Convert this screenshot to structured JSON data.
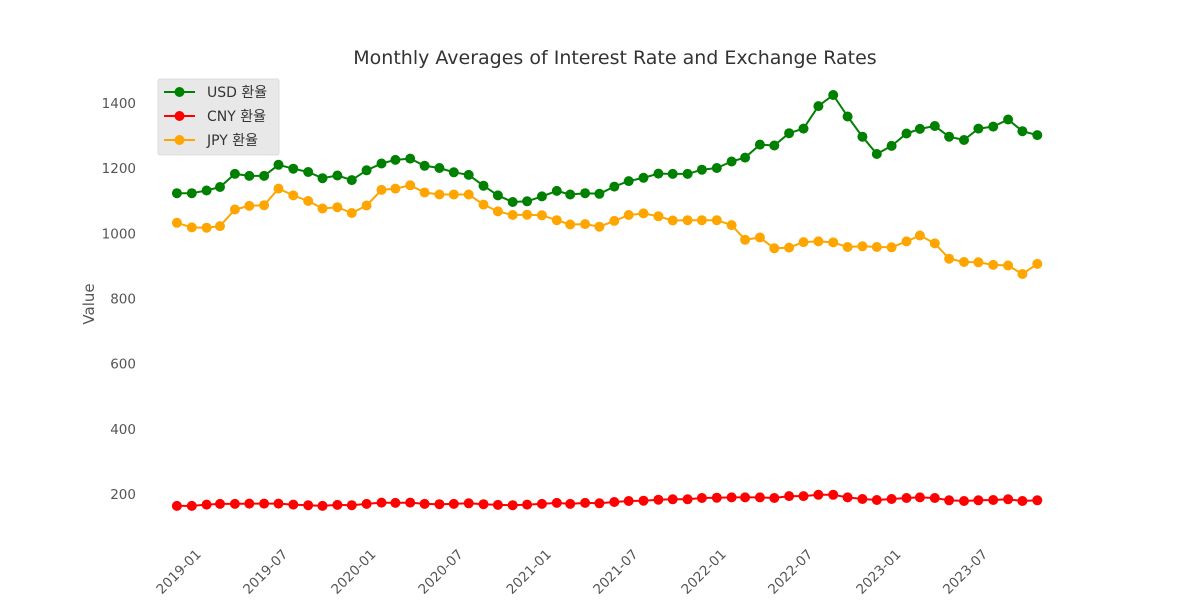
{
  "chart_data": {
    "type": "line",
    "title": "Monthly Averages of Interest Rate and Exchange Rates",
    "xlabel": "",
    "ylabel": "Value",
    "ylim": [
      90,
      1470
    ],
    "yticks": [
      200,
      400,
      600,
      800,
      1000,
      1200,
      1400
    ],
    "xlim": [
      "2018-11-27",
      "2023-12-08"
    ],
    "xticks": [
      "2019-01",
      "2019-07",
      "2020-01",
      "2020-07",
      "2021-01",
      "2021-07",
      "2022-01",
      "2022-07",
      "2023-01",
      "2023-07"
    ],
    "grid": false,
    "legend_position": "top-left",
    "x": [
      "2018-12",
      "2019-01",
      "2019-02",
      "2019-03",
      "2019-04",
      "2019-05",
      "2019-06",
      "2019-07",
      "2019-08",
      "2019-09",
      "2019-10",
      "2019-11",
      "2019-12",
      "2020-01",
      "2020-02",
      "2020-03",
      "2020-04",
      "2020-05",
      "2020-06",
      "2020-07",
      "2020-08",
      "2020-09",
      "2020-10",
      "2020-11",
      "2020-12",
      "2021-01",
      "2021-02",
      "2021-03",
      "2021-04",
      "2021-05",
      "2021-06",
      "2021-07",
      "2021-08",
      "2021-09",
      "2021-10",
      "2021-11",
      "2021-12",
      "2022-01",
      "2022-02",
      "2022-03",
      "2022-04",
      "2022-05",
      "2022-06",
      "2022-07",
      "2022-08",
      "2022-09",
      "2022-10",
      "2022-11",
      "2022-12",
      "2023-01",
      "2023-02",
      "2023-03",
      "2023-04",
      "2023-05",
      "2023-06",
      "2023-07",
      "2023-08",
      "2023-09",
      "2023-10",
      "2023-11"
    ],
    "series": [
      {
        "name": "USD 환율",
        "color": "#008000",
        "values": [
          1123,
          1123,
          1131,
          1142,
          1182,
          1176,
          1176,
          1210,
          1198,
          1188,
          1169,
          1177,
          1163,
          1193,
          1214,
          1225,
          1229,
          1207,
          1200,
          1187,
          1179,
          1146,
          1116,
          1096,
          1098,
          1113,
          1130,
          1119,
          1123,
          1121,
          1143,
          1160,
          1170,
          1183,
          1182,
          1182,
          1195,
          1200,
          1220,
          1232,
          1272,
          1269,
          1307,
          1321,
          1390,
          1424,
          1358,
          1296,
          1243,
          1268,
          1306,
          1320,
          1329,
          1296,
          1286,
          1321,
          1327,
          1349,
          1313,
          1301
        ]
      },
      {
        "name": "CNY 환율",
        "color": "#ff0000",
        "values": [
          164,
          164,
          168,
          170,
          170,
          171,
          171,
          171,
          168,
          166,
          164,
          167,
          166,
          170,
          174,
          173,
          174,
          170,
          169,
          170,
          172,
          169,
          167,
          166,
          168,
          170,
          173,
          170,
          173,
          172,
          176,
          179,
          180,
          183,
          184,
          184,
          188,
          189,
          190,
          190,
          190,
          188,
          194,
          194,
          198,
          198,
          190,
          185,
          182,
          185,
          188,
          190,
          188,
          181,
          179,
          181,
          182,
          184,
          179,
          181
        ]
      },
      {
        "name": "JPY 환율",
        "color": "#ffa500",
        "values": [
          1032,
          1018,
          1017,
          1022,
          1073,
          1084,
          1086,
          1137,
          1116,
          1099,
          1076,
          1080,
          1062,
          1085,
          1133,
          1137,
          1147,
          1125,
          1119,
          1119,
          1119,
          1088,
          1067,
          1056,
          1057,
          1055,
          1040,
          1027,
          1028,
          1020,
          1038,
          1056,
          1061,
          1052,
          1039,
          1040,
          1040,
          1040,
          1025,
          980,
          987,
          954,
          956,
          973,
          975,
          972,
          958,
          960,
          958,
          957,
          975,
          993,
          969,
          922,
          912,
          911,
          903,
          901,
          875,
          906
        ]
      }
    ]
  }
}
